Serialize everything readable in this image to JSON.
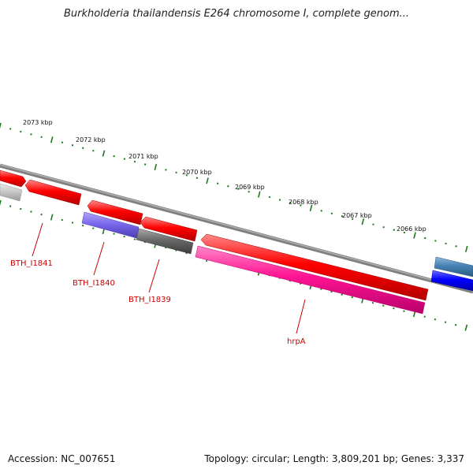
{
  "title": "Burkholderia thailandensis E264 chromosome I, complete genom...",
  "footer": {
    "accession": "Accession: NC_007651",
    "summary": "Topology: circular; Length: 3,809,201 bp; Genes: 3,337"
  },
  "ruler": {
    "labels": [
      "2073 kbp",
      "2072 kbp",
      "2071 kbp",
      "2070 kbp",
      "2069 kbp",
      "2068 kbp",
      "2067 kbp",
      "2066 kbp"
    ]
  },
  "genes": [
    {
      "label": "BTH_I1841",
      "color": "#ff0000"
    },
    {
      "label": "BTH_I1840",
      "color": "#7b68ee"
    },
    {
      "label": "BTH_I1839",
      "color": "#696969"
    },
    {
      "label": "hrpA",
      "color": "#ff1493"
    }
  ],
  "colors": {
    "backbone": "#808080",
    "ticks": "#1a7a1a",
    "label": "#cc0000",
    "cds": "#ff0000",
    "light_gray": "#c8c8c8",
    "steel_blue": "#4682b4",
    "blue": "#0000ff"
  }
}
